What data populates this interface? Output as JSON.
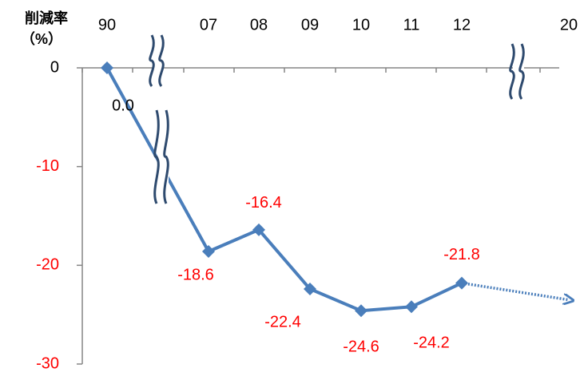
{
  "chart_data": {
    "type": "line",
    "y_label": "削減率",
    "y_unit": "（%）",
    "categories": [
      "90",
      "07",
      "08",
      "09",
      "10",
      "11",
      "12",
      "20"
    ],
    "series": [
      {
        "color": "#4a7ebb",
        "values": [
          0,
          -18.6,
          -16.4,
          -22.4,
          -24.6,
          -24.2,
          -21.8,
          null
        ],
        "value_labels": [
          "0.0",
          "-18.6",
          "-16.4",
          "-22.4",
          "-24.6",
          "-24.2",
          "-21.8",
          null
        ],
        "marker": "diamond"
      },
      {
        "color": "#4a7ebb",
        "style": "dotted",
        "arrow": true,
        "values": [
          null,
          null,
          null,
          null,
          null,
          null,
          -21.8,
          -23.5
        ]
      }
    ],
    "ylim": [
      -30,
      0
    ],
    "yticks": [
      0,
      -10,
      -20,
      -30
    ],
    "negative_label_color": "#ff0000",
    "label_color": "#000000"
  }
}
